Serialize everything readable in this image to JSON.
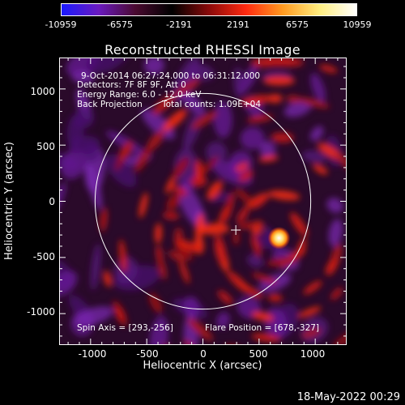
{
  "colorbar": {
    "labels": [
      "-10959",
      "-6575",
      "-2191",
      "2191",
      "6575",
      "10959"
    ],
    "stops": [
      "#1a1aff",
      "#6a1ac0",
      "#4a0a30",
      "#000000",
      "#8a0a0a",
      "#ff2a10",
      "#ff9a20",
      "#ffee80",
      "#ffffff"
    ]
  },
  "title": "Reconstructed RHESSI Image",
  "info": {
    "time": "9-Oct-2014 06:27:24.000 to 06:31:12.000",
    "detectors": "Detectors: 7F 8F 9F, Att 0",
    "energy": "Energy Range: 6.0 - 12.0 keV",
    "method": "Back Projection",
    "counts": "Total counts: 1.09E+04",
    "spin_axis": "Spin Axis = [293,-256]",
    "flare_position": "Flare Position = [678,-327]"
  },
  "axes": {
    "xlabel": "Heliocentric X (arcsec)",
    "ylabel": "Heliocentric Y (arcsec)",
    "xticks": [
      "-1000",
      "-500",
      "0",
      "500",
      "1000"
    ],
    "yticks": [
      "1000",
      "500",
      "0",
      "-500",
      "-1000"
    ],
    "xlim": [
      -1280,
      1280
    ],
    "ylim": [
      -1280,
      1280
    ]
  },
  "image": {
    "solar_limb_radius": 960,
    "spin_axis_marker": [
      293,
      -256
    ],
    "flare_source": [
      678,
      -327
    ]
  },
  "footer": {
    "date": "18-May-2022 00:29"
  }
}
